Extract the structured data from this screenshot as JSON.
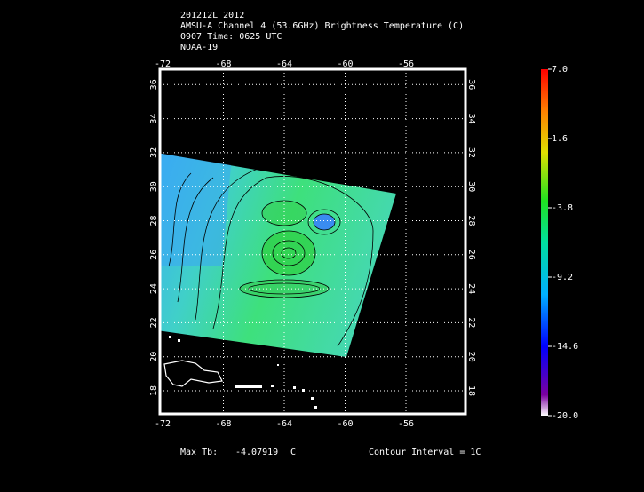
{
  "header": {
    "lines": [
      "201212L 2012",
      "AMSU-A Channel 4 (53.6GHz) Brightness Temperature (C)",
      "0907 Time: 0625 UTC",
      "NOAA-19"
    ]
  },
  "map": {
    "lon_labels": [
      "-72",
      "-68",
      "-64",
      "-60",
      "-56"
    ],
    "lat_labels": [
      "18",
      "20",
      "22",
      "24",
      "26",
      "28",
      "30",
      "32",
      "34",
      "36"
    ]
  },
  "colorbar": {
    "labels": [
      "7.0",
      "1.6",
      "-3.8",
      "-9.2",
      "-14.6",
      "-20.0"
    ]
  },
  "footer": {
    "max_label": "Max Tb:",
    "max_value": "-4.07919",
    "max_unit": "C",
    "contour": "Contour Interval = 1C"
  }
}
